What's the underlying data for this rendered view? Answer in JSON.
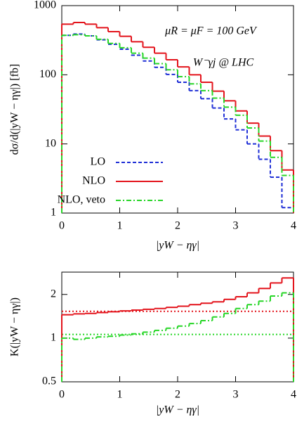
{
  "chart_data": [
    {
      "type": "histogram",
      "ylabel": "dσ/d(|yW − ηγ|) [fb]",
      "xlabel": "|yW − ηγ|",
      "annotations": [
        "μR = μF = 100 GeV",
        "W⁻γj @ LHC"
      ],
      "bins": [
        0,
        0.2,
        0.4,
        0.6,
        0.8,
        1.0,
        1.2,
        1.4,
        1.6,
        1.8,
        2.0,
        2.2,
        2.4,
        2.6,
        2.8,
        3.0,
        3.2,
        3.4,
        3.6,
        3.8,
        4.0
      ],
      "series": [
        {
          "name": "LO",
          "color": "#1f2fd6",
          "dash": "5,3",
          "values": [
            372,
            388,
            365,
            320,
            276,
            234,
            192,
            158,
            128,
            101,
            78,
            59,
            45,
            33,
            23,
            16,
            10,
            6,
            3.3,
            1.2
          ]
        },
        {
          "name": "NLO",
          "color": "#e3141c",
          "dash": "none",
          "values": [
            540,
            570,
            540,
            480,
            420,
            360,
            300,
            250,
            205,
            165,
            130,
            100,
            78,
            58,
            42,
            30,
            20,
            13,
            8,
            4.2
          ]
        },
        {
          "name": "NLO, veto",
          "color": "#27d627",
          "dash": "7,3,2,3",
          "values": [
            372,
            380,
            365,
            326,
            284,
            246,
            205,
            174,
            145,
            118,
            94,
            74,
            59,
            46,
            34,
            26,
            17,
            11,
            6.4,
            3.5
          ]
        }
      ],
      "xlim": [
        0,
        4
      ],
      "xticks": [
        0,
        1,
        2,
        3,
        4
      ],
      "ylim": [
        1,
        1000
      ],
      "yticks": [
        1,
        10,
        100,
        1000
      ],
      "log_y": true,
      "legend": "center left"
    },
    {
      "type": "histogram",
      "ylabel": "K(|yW − ηγ|)",
      "xlabel": "|yW − ηγ|",
      "bins": [
        0,
        0.2,
        0.4,
        0.6,
        0.8,
        1.0,
        1.2,
        1.4,
        1.6,
        1.8,
        2.0,
        2.2,
        2.4,
        2.6,
        2.8,
        3.0,
        3.2,
        3.4,
        3.6,
        3.8,
        4.0
      ],
      "series": [
        {
          "color": "#e3141c",
          "dash": "none",
          "values": [
            1.45,
            1.47,
            1.48,
            1.5,
            1.52,
            1.54,
            1.56,
            1.58,
            1.6,
            1.63,
            1.66,
            1.7,
            1.74,
            1.78,
            1.85,
            1.93,
            2.05,
            2.2,
            2.4,
            2.6
          ]
        },
        {
          "color": "#27d627",
          "dash": "7,3,2,3",
          "values": [
            1.0,
            0.98,
            1.0,
            1.02,
            1.03,
            1.05,
            1.07,
            1.1,
            1.13,
            1.17,
            1.21,
            1.26,
            1.32,
            1.4,
            1.48,
            1.6,
            1.7,
            1.8,
            1.95,
            2.05
          ]
        }
      ],
      "reference_lines": [
        {
          "value": 1.53,
          "color": "#e3141c"
        },
        {
          "value": 1.06,
          "color": "#27d627"
        }
      ],
      "xlim": [
        0,
        4
      ],
      "xticks": [
        0,
        1,
        2,
        3,
        4
      ],
      "ylim": [
        0.5,
        2.85
      ],
      "yticks": [
        0.5,
        1,
        2
      ],
      "log_y": true
    }
  ]
}
